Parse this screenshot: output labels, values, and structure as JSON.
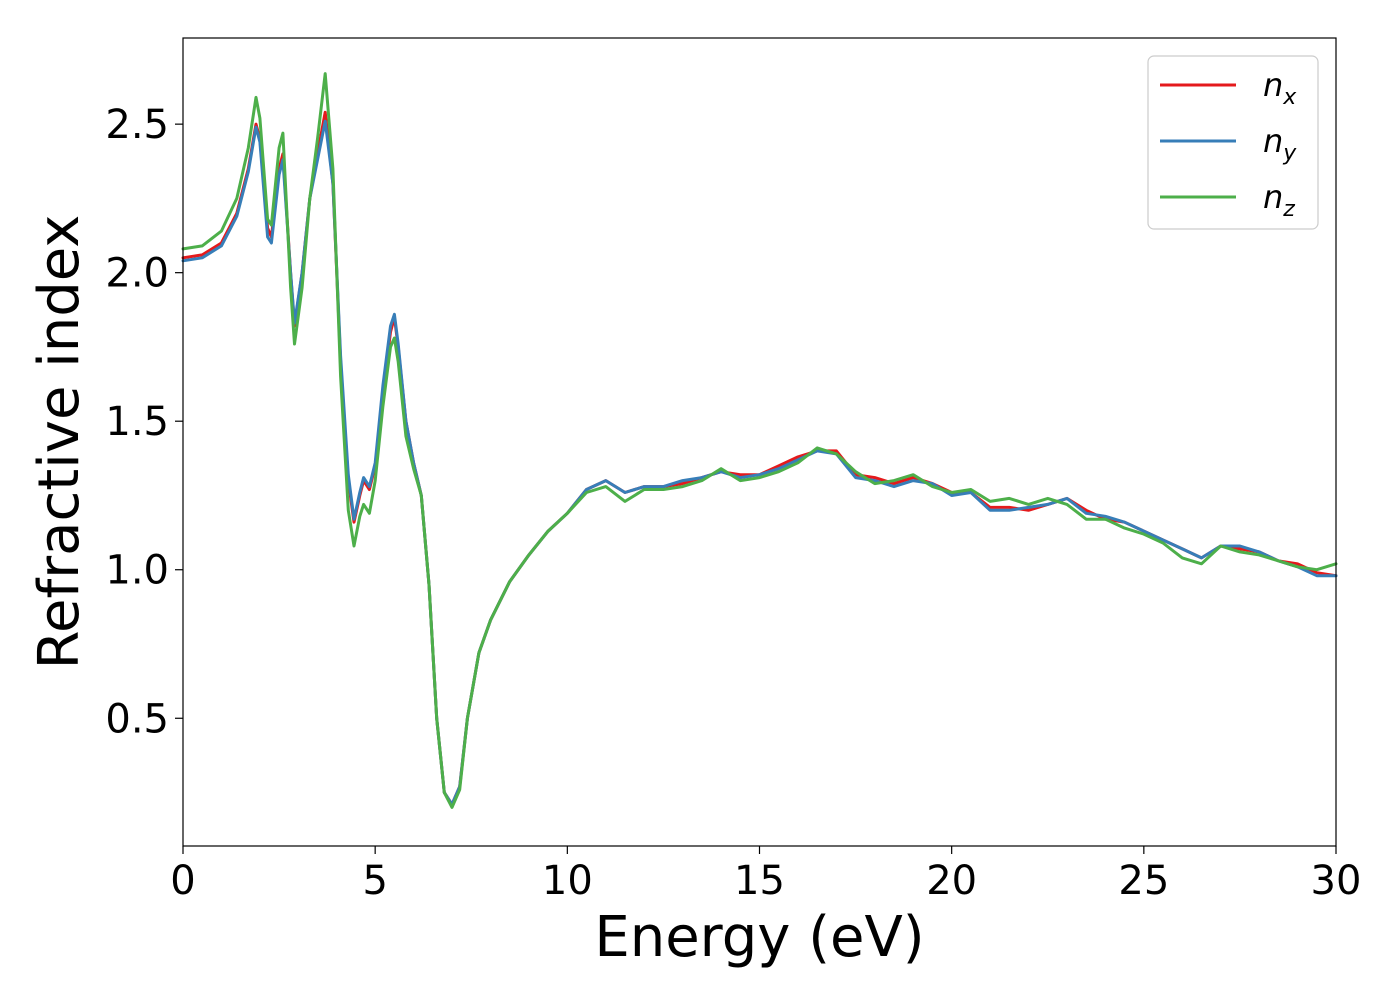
{
  "chart_data": {
    "type": "line",
    "title": "",
    "xlabel": "Energy (eV)",
    "ylabel": "Refractive index",
    "xlim": [
      0,
      30
    ],
    "ylim": [
      0.07,
      2.79
    ],
    "xticks": [
      0,
      5,
      10,
      15,
      20,
      25,
      30
    ],
    "yticks": [
      0.5,
      1.0,
      1.5,
      2.0,
      2.5
    ],
    "xtick_labels": [
      "0",
      "5",
      "10",
      "15",
      "20",
      "25",
      "30"
    ],
    "ytick_labels": [
      "0.5",
      "1.0",
      "1.5",
      "2.0",
      "2.5"
    ],
    "grid": false,
    "legend_position": "top-right",
    "series": [
      {
        "name": "n_x",
        "label_main": "n",
        "label_sub": "x",
        "color": "#e41a1c",
        "points": [
          [
            0,
            2.05
          ],
          [
            0.5,
            2.06
          ],
          [
            1.0,
            2.1
          ],
          [
            1.4,
            2.2
          ],
          [
            1.7,
            2.35
          ],
          [
            1.9,
            2.5
          ],
          [
            2.0,
            2.45
          ],
          [
            2.2,
            2.15
          ],
          [
            2.3,
            2.12
          ],
          [
            2.5,
            2.35
          ],
          [
            2.6,
            2.4
          ],
          [
            2.8,
            2.0
          ],
          [
            2.9,
            1.82
          ],
          [
            3.1,
            2.0
          ],
          [
            3.3,
            2.25
          ],
          [
            3.5,
            2.4
          ],
          [
            3.7,
            2.54
          ],
          [
            3.9,
            2.3
          ],
          [
            4.1,
            1.7
          ],
          [
            4.3,
            1.3
          ],
          [
            4.45,
            1.16
          ],
          [
            4.6,
            1.25
          ],
          [
            4.7,
            1.3
          ],
          [
            4.85,
            1.27
          ],
          [
            5.0,
            1.35
          ],
          [
            5.2,
            1.6
          ],
          [
            5.4,
            1.8
          ],
          [
            5.5,
            1.85
          ],
          [
            5.6,
            1.75
          ],
          [
            5.8,
            1.5
          ],
          [
            6.0,
            1.36
          ],
          [
            6.2,
            1.25
          ],
          [
            6.4,
            0.95
          ],
          [
            6.6,
            0.5
          ],
          [
            6.8,
            0.25
          ],
          [
            7.0,
            0.21
          ],
          [
            7.2,
            0.27
          ],
          [
            7.4,
            0.5
          ],
          [
            7.7,
            0.72
          ],
          [
            8.0,
            0.83
          ],
          [
            8.5,
            0.96
          ],
          [
            9.0,
            1.05
          ],
          [
            9.5,
            1.13
          ],
          [
            10.0,
            1.19
          ],
          [
            10.5,
            1.27
          ],
          [
            11.0,
            1.3
          ],
          [
            11.5,
            1.26
          ],
          [
            12.0,
            1.28
          ],
          [
            12.5,
            1.28
          ],
          [
            13.0,
            1.29
          ],
          [
            13.5,
            1.31
          ],
          [
            14.0,
            1.33
          ],
          [
            14.5,
            1.32
          ],
          [
            15.0,
            1.32
          ],
          [
            15.5,
            1.35
          ],
          [
            16.0,
            1.38
          ],
          [
            16.5,
            1.4
          ],
          [
            17.0,
            1.4
          ],
          [
            17.5,
            1.32
          ],
          [
            18.0,
            1.31
          ],
          [
            18.5,
            1.29
          ],
          [
            19.0,
            1.31
          ],
          [
            19.5,
            1.29
          ],
          [
            20.0,
            1.26
          ],
          [
            20.5,
            1.26
          ],
          [
            21.0,
            1.21
          ],
          [
            21.5,
            1.21
          ],
          [
            22.0,
            1.2
          ],
          [
            22.5,
            1.22
          ],
          [
            23.0,
            1.24
          ],
          [
            23.5,
            1.2
          ],
          [
            24.0,
            1.17
          ],
          [
            24.5,
            1.16
          ],
          [
            25.0,
            1.13
          ],
          [
            25.5,
            1.1
          ],
          [
            26.0,
            1.07
          ],
          [
            26.5,
            1.04
          ],
          [
            27.0,
            1.08
          ],
          [
            27.5,
            1.07
          ],
          [
            28.0,
            1.06
          ],
          [
            28.5,
            1.03
          ],
          [
            29.0,
            1.02
          ],
          [
            29.5,
            0.99
          ],
          [
            30.0,
            0.98
          ]
        ]
      },
      {
        "name": "n_y",
        "label_main": "n",
        "label_sub": "y",
        "color": "#377eb8",
        "points": [
          [
            0,
            2.04
          ],
          [
            0.5,
            2.05
          ],
          [
            1.0,
            2.09
          ],
          [
            1.4,
            2.19
          ],
          [
            1.7,
            2.34
          ],
          [
            1.9,
            2.49
          ],
          [
            2.0,
            2.44
          ],
          [
            2.2,
            2.12
          ],
          [
            2.3,
            2.1
          ],
          [
            2.5,
            2.33
          ],
          [
            2.6,
            2.38
          ],
          [
            2.8,
            2.0
          ],
          [
            2.9,
            1.83
          ],
          [
            3.1,
            2.0
          ],
          [
            3.3,
            2.25
          ],
          [
            3.5,
            2.38
          ],
          [
            3.7,
            2.51
          ],
          [
            3.9,
            2.3
          ],
          [
            4.1,
            1.72
          ],
          [
            4.3,
            1.32
          ],
          [
            4.45,
            1.17
          ],
          [
            4.6,
            1.26
          ],
          [
            4.7,
            1.31
          ],
          [
            4.85,
            1.28
          ],
          [
            5.0,
            1.36
          ],
          [
            5.2,
            1.62
          ],
          [
            5.4,
            1.82
          ],
          [
            5.5,
            1.86
          ],
          [
            5.6,
            1.76
          ],
          [
            5.8,
            1.5
          ],
          [
            6.0,
            1.36
          ],
          [
            6.2,
            1.25
          ],
          [
            6.4,
            0.95
          ],
          [
            6.6,
            0.5
          ],
          [
            6.8,
            0.25
          ],
          [
            7.0,
            0.21
          ],
          [
            7.2,
            0.27
          ],
          [
            7.4,
            0.5
          ],
          [
            7.7,
            0.72
          ],
          [
            8.0,
            0.83
          ],
          [
            8.5,
            0.96
          ],
          [
            9.0,
            1.05
          ],
          [
            9.5,
            1.13
          ],
          [
            10.0,
            1.19
          ],
          [
            10.5,
            1.27
          ],
          [
            11.0,
            1.3
          ],
          [
            11.5,
            1.26
          ],
          [
            12.0,
            1.28
          ],
          [
            12.5,
            1.28
          ],
          [
            13.0,
            1.3
          ],
          [
            13.5,
            1.31
          ],
          [
            14.0,
            1.33
          ],
          [
            14.5,
            1.31
          ],
          [
            15.0,
            1.32
          ],
          [
            15.5,
            1.34
          ],
          [
            16.0,
            1.37
          ],
          [
            16.5,
            1.4
          ],
          [
            17.0,
            1.39
          ],
          [
            17.5,
            1.31
          ],
          [
            18.0,
            1.3
          ],
          [
            18.5,
            1.28
          ],
          [
            19.0,
            1.3
          ],
          [
            19.5,
            1.29
          ],
          [
            20.0,
            1.25
          ],
          [
            20.5,
            1.26
          ],
          [
            21.0,
            1.2
          ],
          [
            21.5,
            1.2
          ],
          [
            22.0,
            1.21
          ],
          [
            22.5,
            1.22
          ],
          [
            23.0,
            1.24
          ],
          [
            23.5,
            1.19
          ],
          [
            24.0,
            1.18
          ],
          [
            24.5,
            1.16
          ],
          [
            25.0,
            1.13
          ],
          [
            25.5,
            1.1
          ],
          [
            26.0,
            1.07
          ],
          [
            26.5,
            1.04
          ],
          [
            27.0,
            1.08
          ],
          [
            27.5,
            1.08
          ],
          [
            28.0,
            1.06
          ],
          [
            28.5,
            1.03
          ],
          [
            29.0,
            1.01
          ],
          [
            29.5,
            0.98
          ],
          [
            30.0,
            0.98
          ]
        ]
      },
      {
        "name": "n_z",
        "label_main": "n",
        "label_sub": "z",
        "color": "#4daf4a",
        "points": [
          [
            0,
            2.08
          ],
          [
            0.5,
            2.09
          ],
          [
            1.0,
            2.14
          ],
          [
            1.4,
            2.25
          ],
          [
            1.7,
            2.42
          ],
          [
            1.9,
            2.59
          ],
          [
            2.0,
            2.52
          ],
          [
            2.2,
            2.18
          ],
          [
            2.3,
            2.16
          ],
          [
            2.5,
            2.42
          ],
          [
            2.6,
            2.47
          ],
          [
            2.8,
            1.95
          ],
          [
            2.9,
            1.76
          ],
          [
            3.1,
            1.95
          ],
          [
            3.3,
            2.25
          ],
          [
            3.5,
            2.45
          ],
          [
            3.7,
            2.67
          ],
          [
            3.9,
            2.35
          ],
          [
            4.1,
            1.65
          ],
          [
            4.3,
            1.2
          ],
          [
            4.45,
            1.08
          ],
          [
            4.6,
            1.18
          ],
          [
            4.7,
            1.22
          ],
          [
            4.85,
            1.19
          ],
          [
            5.0,
            1.3
          ],
          [
            5.2,
            1.55
          ],
          [
            5.4,
            1.75
          ],
          [
            5.5,
            1.78
          ],
          [
            5.6,
            1.7
          ],
          [
            5.8,
            1.45
          ],
          [
            6.0,
            1.34
          ],
          [
            6.2,
            1.25
          ],
          [
            6.4,
            0.95
          ],
          [
            6.6,
            0.5
          ],
          [
            6.8,
            0.25
          ],
          [
            7.0,
            0.2
          ],
          [
            7.2,
            0.26
          ],
          [
            7.4,
            0.5
          ],
          [
            7.7,
            0.72
          ],
          [
            8.0,
            0.83
          ],
          [
            8.5,
            0.96
          ],
          [
            9.0,
            1.05
          ],
          [
            9.5,
            1.13
          ],
          [
            10.0,
            1.19
          ],
          [
            10.5,
            1.26
          ],
          [
            11.0,
            1.28
          ],
          [
            11.5,
            1.23
          ],
          [
            12.0,
            1.27
          ],
          [
            12.5,
            1.27
          ],
          [
            13.0,
            1.28
          ],
          [
            13.5,
            1.3
          ],
          [
            14.0,
            1.34
          ],
          [
            14.5,
            1.3
          ],
          [
            15.0,
            1.31
          ],
          [
            15.5,
            1.33
          ],
          [
            16.0,
            1.36
          ],
          [
            16.5,
            1.41
          ],
          [
            17.0,
            1.39
          ],
          [
            17.5,
            1.33
          ],
          [
            18.0,
            1.29
          ],
          [
            18.5,
            1.3
          ],
          [
            19.0,
            1.32
          ],
          [
            19.5,
            1.28
          ],
          [
            20.0,
            1.26
          ],
          [
            20.5,
            1.27
          ],
          [
            21.0,
            1.23
          ],
          [
            21.5,
            1.24
          ],
          [
            22.0,
            1.22
          ],
          [
            22.5,
            1.24
          ],
          [
            23.0,
            1.22
          ],
          [
            23.5,
            1.17
          ],
          [
            24.0,
            1.17
          ],
          [
            24.5,
            1.14
          ],
          [
            25.0,
            1.12
          ],
          [
            25.5,
            1.09
          ],
          [
            26.0,
            1.04
          ],
          [
            26.5,
            1.02
          ],
          [
            27.0,
            1.08
          ],
          [
            27.5,
            1.06
          ],
          [
            28.0,
            1.05
          ],
          [
            28.5,
            1.03
          ],
          [
            29.0,
            1.01
          ],
          [
            29.5,
            1.0
          ],
          [
            30.0,
            1.02
          ]
        ]
      }
    ]
  }
}
